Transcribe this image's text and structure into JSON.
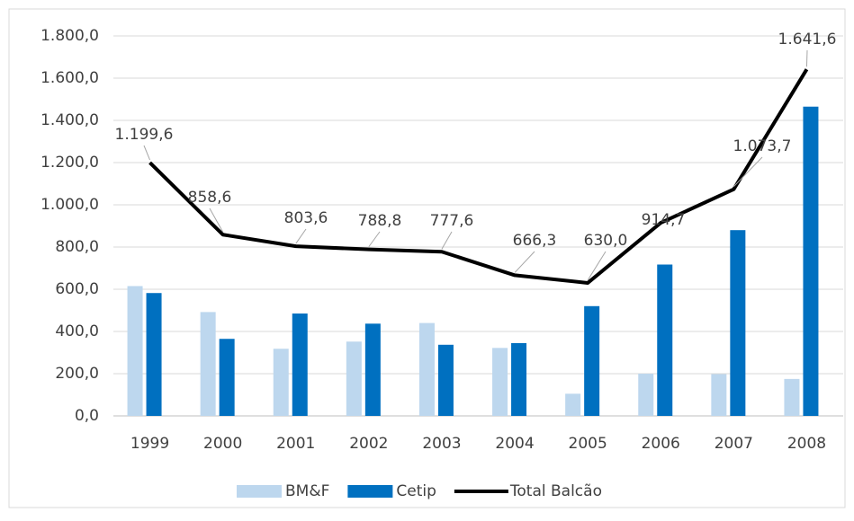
{
  "chart_data": {
    "type": "bar_line",
    "categories": [
      "1999",
      "2000",
      "2001",
      "2002",
      "2003",
      "2004",
      "2005",
      "2006",
      "2007",
      "2008"
    ],
    "series": [
      {
        "name": "BM&F",
        "type": "bar",
        "color": "#bdd7ee",
        "values": [
          615,
          492,
          318,
          352,
          440,
          322,
          105,
          200,
          198,
          175
        ]
      },
      {
        "name": "Cetip",
        "type": "bar",
        "color": "#0070c0",
        "values": [
          582,
          365,
          485,
          437,
          337,
          345,
          520,
          717,
          880,
          1465
        ]
      },
      {
        "name": "Total Balcão",
        "type": "line",
        "color": "#000000",
        "values": [
          1199.6,
          858.6,
          803.6,
          788.8,
          777.6,
          666.3,
          630.0,
          914.7,
          1073.7,
          1641.6
        ],
        "value_labels": [
          "1.199,6",
          "858,6",
          "803,6",
          "788,8",
          "777,6",
          "666,3",
          "630,0",
          "914,7",
          "1.073,7",
          "1.641,6"
        ]
      }
    ],
    "ylim": [
      0,
      1800
    ],
    "yticks": [
      {
        "value": 0,
        "label": "0,0"
      },
      {
        "value": 200,
        "label": "200,0"
      },
      {
        "value": 400,
        "label": "400,0"
      },
      {
        "value": 600,
        "label": "600,0"
      },
      {
        "value": 800,
        "label": "800,0"
      },
      {
        "value": 1000,
        "label": "1.000,0"
      },
      {
        "value": 1200,
        "label": "1.200,0"
      },
      {
        "value": 1400,
        "label": "1.400,0"
      },
      {
        "value": 1600,
        "label": "1.600,0"
      },
      {
        "value": 1800,
        "label": "1.800,0"
      }
    ],
    "grid": true,
    "legend": "bottom"
  }
}
